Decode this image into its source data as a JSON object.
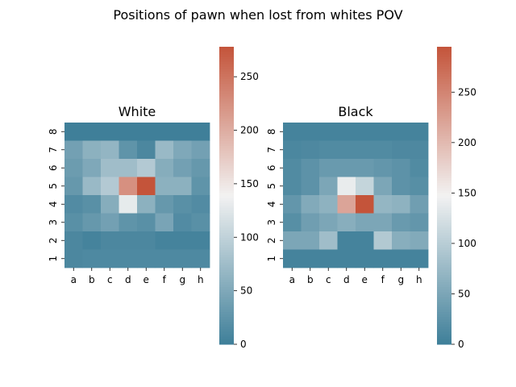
{
  "chart_data": {
    "type": "heatmap",
    "title": "Positions of pawn when lost from whites POV",
    "colormap": {
      "low": "#3f7f99",
      "mid": "#f2f2f2",
      "high": "#c4543a"
    },
    "panels": [
      {
        "title": "White",
        "x_labels": [
          "a",
          "b",
          "c",
          "d",
          "e",
          "f",
          "g",
          "h"
        ],
        "y_labels": [
          "8",
          "7",
          "6",
          "5",
          "4",
          "3",
          "2",
          "1"
        ],
        "vmin": 0,
        "vmax": 278,
        "colorbar_ticks": [
          0,
          50,
          100,
          150,
          200,
          250
        ],
        "values": [
          [
            0,
            0,
            0,
            0,
            0,
            0,
            0,
            0
          ],
          [
            40,
            60,
            65,
            25,
            10,
            70,
            50,
            40
          ],
          [
            35,
            50,
            75,
            75,
            90,
            55,
            40,
            30
          ],
          [
            30,
            70,
            90,
            225,
            278,
            60,
            60,
            25
          ],
          [
            15,
            20,
            55,
            130,
            60,
            30,
            20,
            15
          ],
          [
            20,
            30,
            40,
            25,
            20,
            45,
            15,
            20
          ],
          [
            10,
            5,
            10,
            10,
            10,
            5,
            5,
            5
          ],
          [
            10,
            12,
            12,
            12,
            12,
            12,
            12,
            12
          ]
        ]
      },
      {
        "title": "Black",
        "x_labels": [
          "a",
          "b",
          "c",
          "d",
          "e",
          "f",
          "g",
          "h"
        ],
        "y_labels": [
          "8",
          "7",
          "6",
          "5",
          "4",
          "3",
          "2",
          "1"
        ],
        "vmin": 0,
        "vmax": 295,
        "colorbar_ticks": [
          0,
          50,
          100,
          150,
          200,
          250
        ],
        "values": [
          [
            5,
            5,
            5,
            5,
            5,
            5,
            5,
            5
          ],
          [
            10,
            12,
            15,
            15,
            15,
            15,
            12,
            12
          ],
          [
            15,
            25,
            35,
            35,
            35,
            30,
            25,
            15
          ],
          [
            15,
            25,
            50,
            140,
            110,
            50,
            25,
            20
          ],
          [
            30,
            55,
            65,
            220,
            295,
            70,
            65,
            40
          ],
          [
            20,
            40,
            50,
            60,
            50,
            50,
            35,
            30
          ],
          [
            50,
            50,
            80,
            5,
            5,
            95,
            60,
            55
          ],
          [
            5,
            5,
            5,
            5,
            5,
            5,
            5,
            5
          ]
        ]
      }
    ]
  }
}
